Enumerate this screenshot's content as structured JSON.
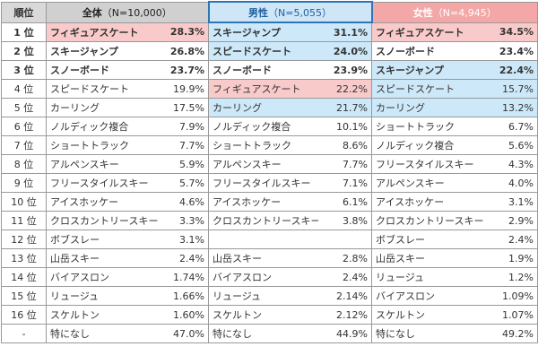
{
  "table": {
    "header": {
      "rank": "順位",
      "groups": [
        {
          "title": "全体",
          "note": "（N=10,000）"
        },
        {
          "title": "男性",
          "note": "（N=5,055）"
        },
        {
          "title": "女性",
          "note": "（N=4,945）"
        }
      ]
    },
    "rows": [
      [
        "1 位",
        "フィギュアスケート",
        "28.3%",
        "スキージャンプ",
        "31.1%",
        "フィギュアスケート",
        "34.5%"
      ],
      [
        "2 位",
        "スキージャンプ",
        "26.8%",
        "スピードスケート",
        "24.0%",
        "スノーボード",
        "23.4%"
      ],
      [
        "3 位",
        "スノーボード",
        "23.7%",
        "スノーボード",
        "23.9%",
        "スキージャンプ",
        "22.4%"
      ],
      [
        "4 位",
        "スピードスケート",
        "19.9%",
        "フィギュアスケート",
        "22.2%",
        "スピードスケート",
        "15.7%"
      ],
      [
        "5 位",
        "カーリング",
        "17.5%",
        "カーリング",
        "21.7%",
        "カーリング",
        "13.2%"
      ],
      [
        "6 位",
        "ノルディック複合",
        "7.9%",
        "ノルディック複合",
        "10.1%",
        "ショートトラック",
        "6.7%"
      ],
      [
        "7 位",
        "ショートトラック",
        "7.7%",
        "ショートトラック",
        "8.6%",
        "ノルディック複合",
        "5.6%"
      ],
      [
        "8 位",
        "アルペンスキー",
        "5.9%",
        "アルペンスキー",
        "7.7%",
        "フリースタイルスキー",
        "4.3%"
      ],
      [
        "9 位",
        "フリースタイルスキー",
        "5.7%",
        "フリースタイルスキー",
        "7.1%",
        "アルペンスキー",
        "4.0%"
      ],
      [
        "10 位",
        "アイスホッケー",
        "4.6%",
        "アイスホッケー",
        "6.1%",
        "アイスホッケー",
        "3.1%"
      ],
      [
        "11 位",
        "クロスカントリースキー",
        "3.3%",
        "クロスカントリースキー",
        "3.8%",
        "クロスカントリースキー",
        "2.9%"
      ],
      [
        "12 位",
        "ボブスレー",
        "3.1%",
        null,
        null,
        "ボブスレー",
        "2.4%"
      ],
      [
        "13 位",
        "山岳スキー",
        "2.4%",
        "山岳スキー",
        "2.8%",
        "山岳スキー",
        "1.9%"
      ],
      [
        "14 位",
        "バイアスロン",
        "1.74%",
        "バイアスロン",
        "2.4%",
        "リュージュ",
        "1.2%"
      ],
      [
        "15 位",
        "リュージュ",
        "1.66%",
        "リュージュ",
        "2.14%",
        "バイアスロン",
        "1.09%"
      ],
      [
        "16 位",
        "スケルトン",
        "1.60%",
        "スケルトン",
        "2.12%",
        "スケルトン",
        "1.07%"
      ],
      [
        "-",
        "特になし",
        "47.0%",
        "特になし",
        "44.9%",
        "特になし",
        "49.2%"
      ]
    ]
  }
}
